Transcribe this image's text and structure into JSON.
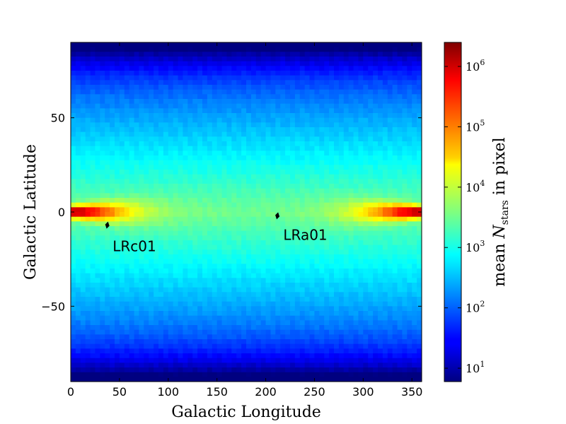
{
  "chart_data": {
    "type": "heatmap",
    "title": "",
    "xlabel": "Galactic Longitude",
    "ylabel": "Galactic Latitude",
    "xlim": [
      0,
      360
    ],
    "ylim": [
      -90,
      90
    ],
    "x_ticks": [
      0,
      50,
      100,
      150,
      200,
      250,
      300,
      350
    ],
    "x_tick_labels": [
      "0",
      "50",
      "100",
      "150",
      "200",
      "250",
      "300",
      "350"
    ],
    "y_ticks": [
      50,
      0,
      -50
    ],
    "y_tick_labels": [
      "50",
      "0",
      "−50"
    ],
    "grid": false,
    "colormap": "jet",
    "colorbar": {
      "scale": "log",
      "range": [
        6,
        2500000
      ],
      "ticks": [
        10,
        100,
        1000,
        10000,
        100000,
        1000000
      ],
      "tick_base": [
        "10",
        "10",
        "10",
        "10",
        "10",
        "10"
      ],
      "tick_exp": [
        "1",
        "2",
        "3",
        "4",
        "5",
        "6"
      ],
      "label_prefix": "mean ",
      "label_var": "N",
      "label_sub": "stars",
      "label_suffix": " in pixel"
    },
    "field_model": {
      "description_values_at": [
        {
          "l": 0,
          "b": 0,
          "value": 2500000
        },
        {
          "l": 180,
          "b": 0,
          "value": 3000
        },
        {
          "l": 0,
          "b": 50,
          "value": 1000
        },
        {
          "l": 180,
          "b": 85,
          "value": 200
        }
      ]
    },
    "annotations": [
      {
        "text": "LRc01",
        "marker_l": 37.5,
        "marker_b": -7,
        "label_l": 43,
        "label_b": -17
      },
      {
        "text": "LRa01",
        "marker_l": 212,
        "marker_b": -2,
        "label_l": 218,
        "label_b": -11
      }
    ]
  }
}
